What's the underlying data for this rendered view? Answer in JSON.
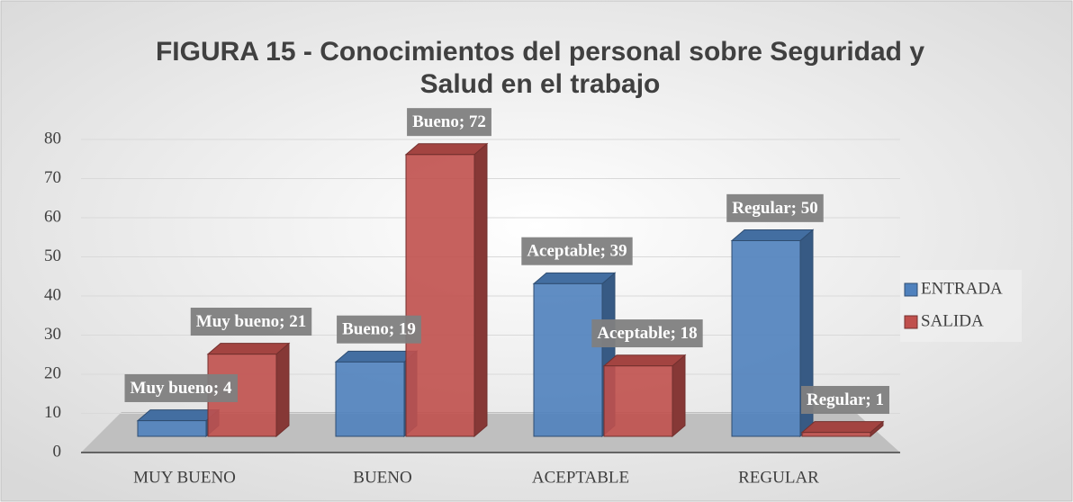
{
  "chart_data": {
    "type": "bar",
    "title": "FIGURA 15 - Conocimientos del personal sobre Seguridad y Salud en el trabajo",
    "categories": [
      "MUY BUENO",
      "BUENO",
      "ACEPTABLE",
      "REGULAR"
    ],
    "series": [
      {
        "name": "ENTRADA",
        "color": "#4f81bd",
        "values": [
          4,
          19,
          39,
          50
        ],
        "value_labels": [
          "Muy bueno; 4",
          "Bueno; 19",
          "Aceptable; 39",
          "Regular; 50"
        ]
      },
      {
        "name": "SALIDA",
        "color": "#c0504d",
        "values": [
          21,
          72,
          18,
          1
        ],
        "value_labels": [
          "Muy bueno; 21",
          "Bueno; 72",
          "Aceptable; 18",
          "Regular; 1"
        ]
      }
    ],
    "ylim": [
      0,
      80
    ],
    "yticks": [
      0,
      10,
      20,
      30,
      40,
      50,
      60,
      70,
      80
    ],
    "grid": true,
    "legend": "right"
  }
}
